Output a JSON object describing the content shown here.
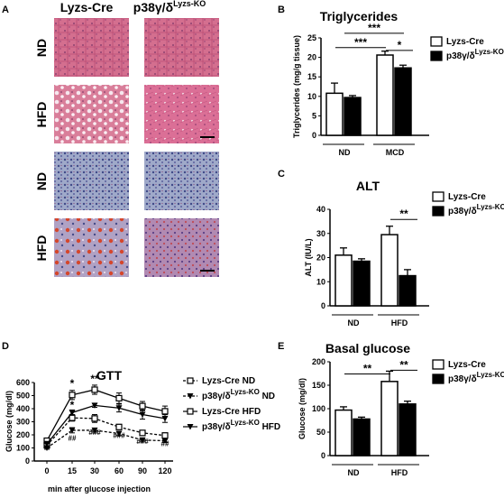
{
  "panels": {
    "A": {
      "letter": "A",
      "col_headers": [
        "Lyzs-Cre",
        "p38γ/δ",
        "Lyzs-KO"
      ],
      "row_labels": [
        "ND",
        "HFD",
        "ND",
        "HFD"
      ]
    },
    "B": {
      "letter": "B"
    },
    "C": {
      "letter": "C"
    },
    "D": {
      "letter": "D"
    },
    "E": {
      "letter": "E"
    }
  },
  "legend_ko": {
    "main": "p38γ/δ",
    "sup": "Lyzs-KO"
  },
  "chart_data": [
    {
      "id": "B",
      "type": "bar",
      "title": "Triglycerides",
      "ylabel": "Triglycerides (mg/g tissue)",
      "ylim": [
        0,
        25
      ],
      "yticks": [
        "0",
        "5",
        "10",
        "15",
        "20",
        "25"
      ],
      "groups": [
        "ND",
        "MCD"
      ],
      "series": [
        {
          "name": "Lyzs-Cre",
          "fill": "#ffffff",
          "values": [
            10.8,
            20.6
          ],
          "errors": [
            2.6,
            1.0
          ]
        },
        {
          "name": "p38γ/δ Lyzs-KO",
          "fill": "#000000",
          "values": [
            9.7,
            17.3
          ],
          "errors": [
            0.5,
            0.7
          ]
        }
      ],
      "annotations": [
        "***",
        "***",
        "*"
      ]
    },
    {
      "id": "C",
      "type": "bar",
      "title": "ALT",
      "ylabel": "ALT (IU/L)",
      "ylim": [
        0,
        40
      ],
      "yticks": [
        "0",
        "10",
        "20",
        "30",
        "40"
      ],
      "groups": [
        "ND",
        "HFD"
      ],
      "series": [
        {
          "name": "Lyzs-Cre",
          "fill": "#ffffff",
          "values": [
            21,
            29.5
          ],
          "errors": [
            3,
            3.5
          ]
        },
        {
          "name": "p38γ/δ Lyzs-KO",
          "fill": "#000000",
          "values": [
            18.5,
            12.5
          ],
          "errors": [
            1,
            2.5
          ]
        }
      ],
      "annotations": [
        "**"
      ]
    },
    {
      "id": "D",
      "type": "line",
      "title": "GTT",
      "xlabel": "min after glucose injection",
      "ylabel": "Glucose (mg/dl)",
      "x": [
        0,
        15,
        30,
        60,
        90,
        120
      ],
      "xticks": [
        "0",
        "15",
        "30",
        "60",
        "90",
        "120"
      ],
      "ylim": [
        0,
        600
      ],
      "yticks": [
        "0",
        "100",
        "200",
        "300",
        "400",
        "500",
        "600"
      ],
      "series": [
        {
          "name": "Lyzs-Cre ND",
          "values": [
            120,
            330,
            325,
            260,
            215,
            195
          ],
          "errors": [
            15,
            25,
            30,
            20,
            15,
            20
          ],
          "marker": "square-open",
          "dashed": true
        },
        {
          "name": "p38γ/δ Lyzs-KO ND",
          "values": [
            100,
            235,
            235,
            210,
            160,
            155
          ],
          "errors": [
            10,
            20,
            15,
            15,
            10,
            10
          ],
          "marker": "triangle-filled",
          "dashed": true
        },
        {
          "name": "Lyzs-Cre HFD",
          "values": [
            155,
            505,
            545,
            480,
            420,
            380
          ],
          "errors": [
            20,
            35,
            35,
            40,
            35,
            40
          ],
          "marker": "square-open",
          "dashed": false
        },
        {
          "name": "p38γ/δ Lyzs-KO HFD",
          "values": [
            130,
            370,
            425,
            405,
            355,
            325
          ],
          "errors": [
            20,
            20,
            15,
            30,
            35,
            30
          ],
          "marker": "triangle-filled",
          "dashed": false
        }
      ],
      "annotations": [
        {
          "x": 15,
          "y": 565,
          "text": "*"
        },
        {
          "x": 30,
          "y": 600,
          "text": "**"
        },
        {
          "x": 15,
          "y": 400,
          "text": "*"
        },
        {
          "x": 15,
          "y": 155,
          "text": "##"
        },
        {
          "x": 30,
          "y": 200,
          "text": "###"
        },
        {
          "x": 60,
          "y": 175,
          "text": "###"
        },
        {
          "x": 90,
          "y": 130,
          "text": "###"
        },
        {
          "x": 120,
          "y": 115,
          "text": "##"
        }
      ],
      "legend": [
        {
          "main": "Lyzs-Cre ND"
        },
        {
          "main": "p38γ/δ",
          "sup": "Lyzs-KO",
          "suffix": "ND"
        },
        {
          "main": "Lyzs-Cre HFD"
        },
        {
          "main": "p38γ/δ",
          "sup": "Lyzs-KO",
          "suffix": "HFD"
        }
      ]
    },
    {
      "id": "E",
      "type": "bar",
      "title": "Basal glucose",
      "ylabel": "Glucose (mg/dl)",
      "ylim": [
        0,
        200
      ],
      "yticks": [
        "0",
        "50",
        "100",
        "150",
        "200"
      ],
      "groups": [
        "ND",
        "HFD"
      ],
      "series": [
        {
          "name": "Lyzs-Cre",
          "fill": "#ffffff",
          "values": [
            97,
            158
          ],
          "errors": [
            7,
            22
          ]
        },
        {
          "name": "p38γ/δ Lyzs-KO",
          "fill": "#000000",
          "values": [
            78,
            110
          ],
          "errors": [
            4,
            6
          ]
        }
      ],
      "annotations": [
        "**",
        "**"
      ]
    }
  ]
}
